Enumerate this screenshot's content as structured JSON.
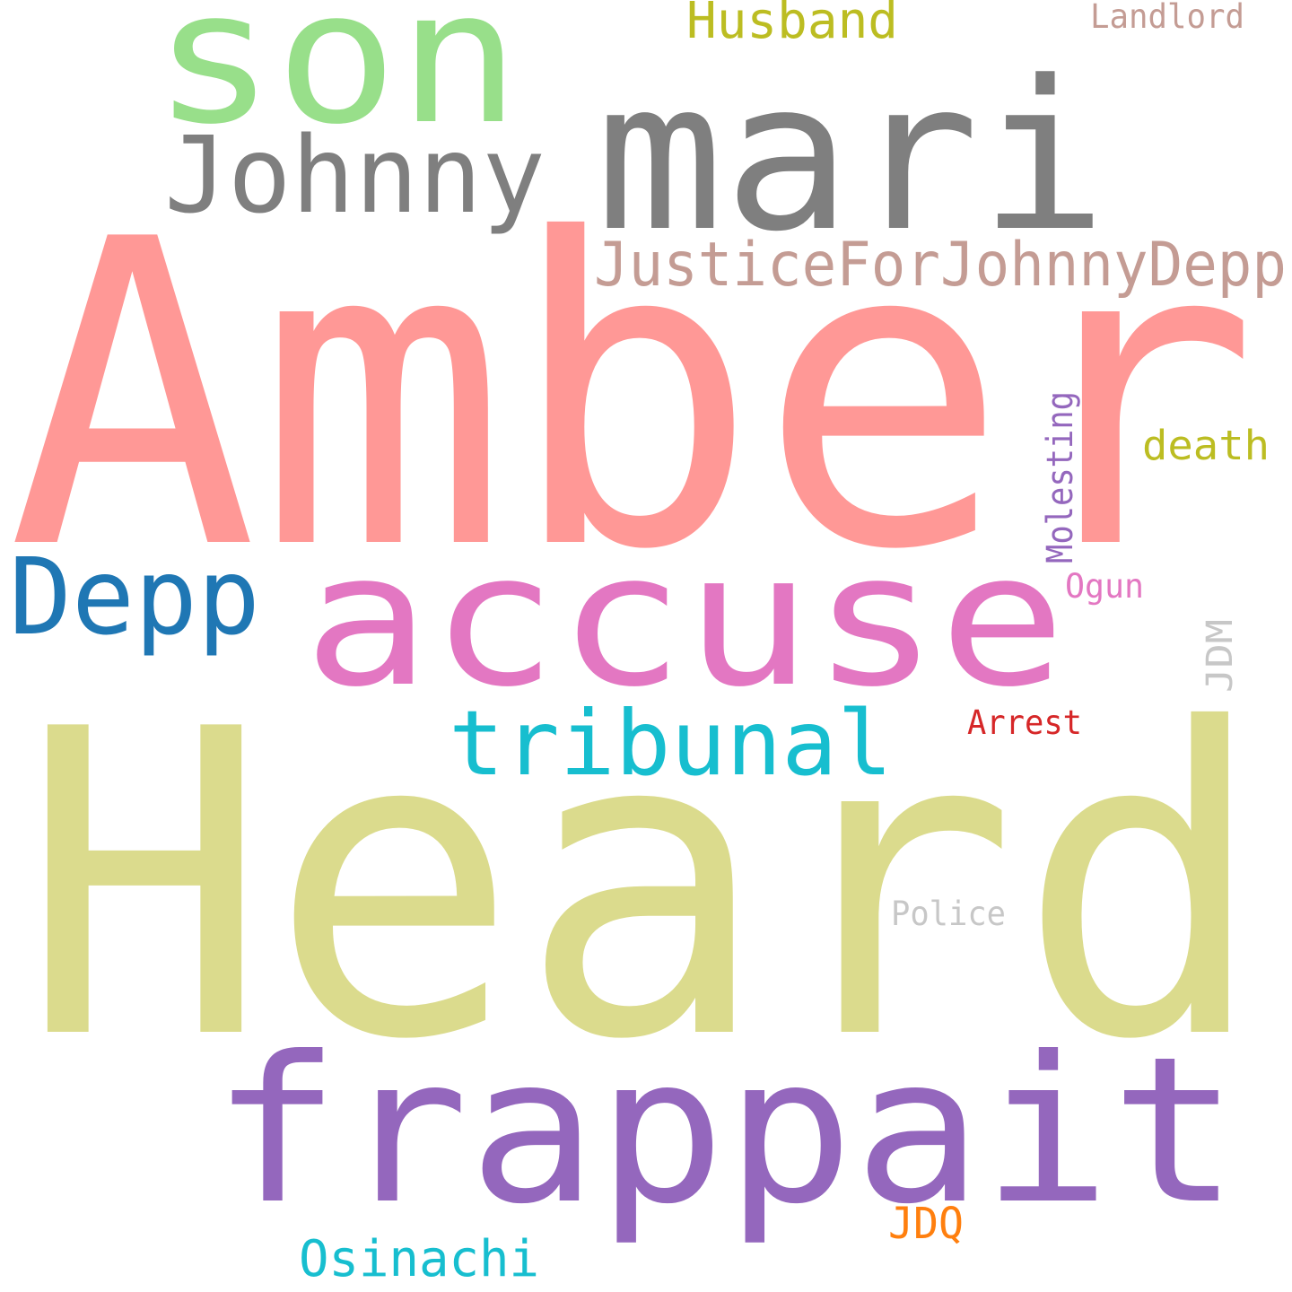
{
  "words": [
    {
      "text": "Amber",
      "color": "#ff9896"
    },
    {
      "text": "Heard",
      "color": "#dbdb8d"
    },
    {
      "text": "accuse",
      "color": "#e377c2"
    },
    {
      "text": "frappait",
      "color": "#9467bd"
    },
    {
      "text": "mari",
      "color": "#7f7f7f"
    },
    {
      "text": "son",
      "color": "#98df8a"
    },
    {
      "text": "Johnny",
      "color": "#7f7f7f"
    },
    {
      "text": "JusticeForJohnnyDepp",
      "color": "#c49c94"
    },
    {
      "text": "Depp",
      "color": "#1f77b4"
    },
    {
      "text": "tribunal",
      "color": "#17becf"
    },
    {
      "text": "Husband",
      "color": "#bcbd22"
    },
    {
      "text": "Landlord",
      "color": "#c49c94"
    },
    {
      "text": "death",
      "color": "#bcbd22"
    },
    {
      "text": "Molesting",
      "color": "#9467bd"
    },
    {
      "text": "Ogun",
      "color": "#e377c2"
    },
    {
      "text": "JDM",
      "color": "#c7c7c7"
    },
    {
      "text": "Arrest",
      "color": "#d62728"
    },
    {
      "text": "Police",
      "color": "#c7c7c7"
    },
    {
      "text": "JDQ",
      "color": "#ff7f0e"
    },
    {
      "text": "Osinachi",
      "color": "#17becf"
    }
  ]
}
